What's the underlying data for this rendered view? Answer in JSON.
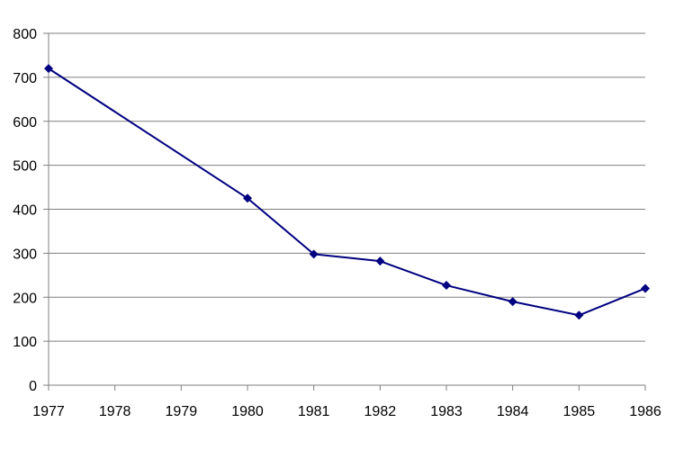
{
  "chart_data": {
    "type": "line",
    "title": "",
    "xlabel": "",
    "ylabel": "",
    "x_ticks": [
      "1977",
      "1978",
      "1979",
      "1980",
      "1981",
      "1982",
      "1983",
      "1984",
      "1985",
      "1986"
    ],
    "y_ticks": [
      "0",
      "100",
      "200",
      "300",
      "400",
      "500",
      "600",
      "700",
      "800"
    ],
    "xlim": [
      1977,
      1986
    ],
    "ylim": [
      0,
      800
    ],
    "grid": "horizontal",
    "legend": "none",
    "series": [
      {
        "color": "#000080",
        "marker": "diamond",
        "points": [
          {
            "x": 1977,
            "y": 720
          },
          {
            "x": 1980,
            "y": 425
          },
          {
            "x": 1981,
            "y": 298
          },
          {
            "x": 1982,
            "y": 282
          },
          {
            "x": 1983,
            "y": 227
          },
          {
            "x": 1984,
            "y": 190
          },
          {
            "x": 1985,
            "y": 159
          },
          {
            "x": 1986,
            "y": 220
          }
        ]
      }
    ]
  }
}
